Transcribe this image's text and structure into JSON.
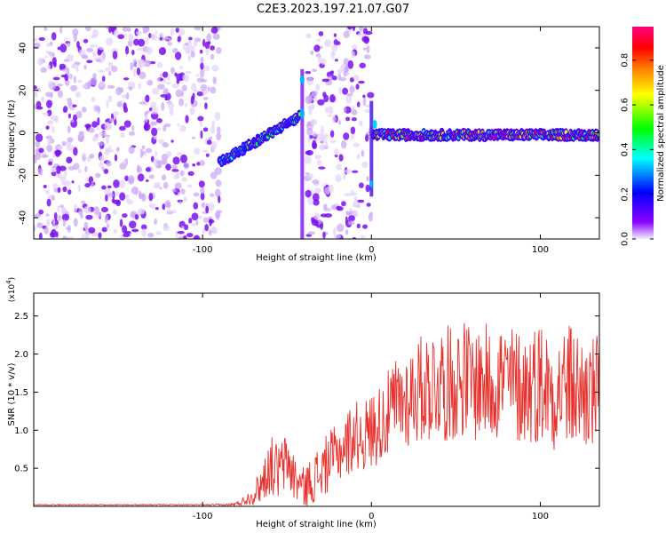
{
  "figure_title": "C2E3.2023.197.21.07.G07",
  "chart_data": [
    {
      "type": "heatmap",
      "title": "",
      "xlabel": "Height of straight line (km)",
      "ylabel": "Frequency (Hz)",
      "xlim": [
        -200,
        135
      ],
      "ylim": [
        -50,
        50
      ],
      "xticks": [
        -100,
        0,
        100
      ],
      "yticks": [
        -40,
        -20,
        0,
        20,
        40
      ],
      "colorbar": {
        "label": "Normalized spectral amplitude",
        "range": [
          0.0,
          0.95
        ],
        "ticks": [
          0.0,
          0.2,
          0.4,
          0.6,
          0.8
        ],
        "colormap": [
          "#f0f0ff",
          "#7a00ff",
          "#0000ff",
          "#00ffff",
          "#00ff00",
          "#ffff00",
          "#ff8000",
          "#ff0000",
          "#ff0080"
        ]
      },
      "regions": [
        {
          "x_range": [
            -200,
            -90
          ],
          "description": "noise",
          "freq_range": [
            -50,
            50
          ],
          "amplitude": 0.1
        },
        {
          "x_range": [
            -90,
            -42
          ],
          "description": "signal",
          "freq_start": -14,
          "freq_end": 8,
          "amplitude": 0.45
        },
        {
          "x_range": [
            -42,
            -40
          ],
          "description": "spike",
          "freq_range": [
            -50,
            30
          ],
          "amplitude": 0.2
        },
        {
          "x_range": [
            -38,
            0
          ],
          "description": "noise",
          "freq_range": [
            -50,
            50
          ],
          "amplitude": 0.1
        },
        {
          "x_range": [
            1,
            135
          ],
          "description": "signal",
          "freq_center": -1,
          "amplitude": 0.7
        }
      ]
    },
    {
      "type": "line",
      "title": "",
      "xlabel": "Height of straight line (km)",
      "ylabel": "SNR (10 * v/v)",
      "y_multiplier": "(x10^4)",
      "multiplier_base": "(x10",
      "multiplier_exp": "4",
      "multiplier_close": ")",
      "xlim": [
        -200,
        135
      ],
      "ylim": [
        0,
        2.8
      ],
      "xticks": [
        -100,
        0,
        100
      ],
      "yticks": [
        0.5,
        1.0,
        1.5,
        2.0,
        2.5
      ],
      "ytick_labels": [
        "0.5",
        "1.0",
        "1.5",
        "2.0",
        "2.5"
      ],
      "series": [
        {
          "color": "#e8302c",
          "x": [
            -200,
            -180,
            -160,
            -140,
            -120,
            -100,
            -85,
            -80,
            -75,
            -70,
            -65,
            -60,
            -55,
            -50,
            -45,
            -40,
            -35,
            -30,
            -25,
            -20,
            -15,
            -10,
            -5,
            0,
            5,
            10,
            15,
            20,
            25,
            30,
            35,
            40,
            45,
            50,
            55,
            60,
            65,
            70,
            75,
            80,
            85,
            90,
            95,
            100,
            105,
            110,
            115,
            120,
            125,
            130,
            135
          ],
          "y": [
            0.02,
            0.02,
            0.02,
            0.02,
            0.02,
            0.02,
            0.02,
            0.03,
            0.08,
            0.15,
            0.3,
            0.55,
            0.45,
            0.6,
            0.35,
            0.25,
            0.35,
            0.45,
            0.6,
            0.7,
            0.8,
            0.95,
            0.9,
            1.0,
            1.1,
            1.2,
            1.35,
            1.4,
            1.5,
            1.55,
            1.6,
            1.65,
            1.6,
            1.65,
            1.7,
            1.6,
            1.65,
            1.6,
            1.7,
            1.65,
            1.6,
            1.55,
            1.6,
            1.65,
            1.55,
            1.5,
            1.6,
            1.55,
            1.5,
            1.45,
            1.5
          ],
          "noise_amplitude": [
            0.005,
            0.005,
            0.005,
            0.005,
            0.005,
            0.005,
            0.01,
            0.02,
            0.05,
            0.1,
            0.2,
            0.3,
            0.3,
            0.3,
            0.25,
            0.2,
            0.25,
            0.3,
            0.3,
            0.3,
            0.35,
            0.35,
            0.35,
            0.4,
            0.4,
            0.45,
            0.5,
            0.5,
            0.55,
            0.55,
            0.6,
            0.6,
            0.6,
            0.6,
            0.6,
            0.6,
            0.6,
            0.6,
            0.65,
            0.6,
            0.6,
            0.6,
            0.6,
            0.65,
            0.6,
            0.6,
            0.65,
            0.65,
            0.6,
            0.6,
            0.6
          ]
        }
      ]
    }
  ]
}
